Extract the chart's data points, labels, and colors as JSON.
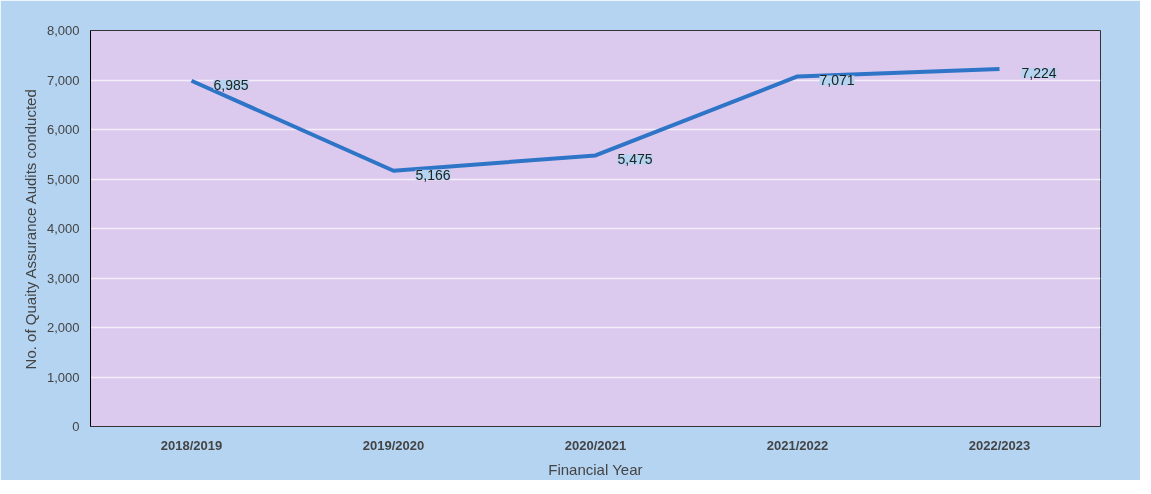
{
  "chart_data": {
    "type": "line",
    "categories": [
      "2018/2019",
      "2019/2020",
      "2020/2021",
      "2021/2022",
      "2022/2023"
    ],
    "series": [
      {
        "color": "#2e75c8",
        "values": [
          6985,
          5166,
          5475,
          7071,
          7224
        ],
        "value_labels": [
          "6,985",
          "5,166",
          "5,475",
          "7,071",
          "7,224"
        ]
      }
    ],
    "xlabel": "Financial Year",
    "ylabel": "No. of Quaity Assurance Audits conducted",
    "ylim": [
      0,
      8000
    ],
    "yticks": [
      {
        "value": 0,
        "label": "0"
      },
      {
        "value": 1000,
        "label": "1,000"
      },
      {
        "value": 2000,
        "label": "2,000"
      },
      {
        "value": 3000,
        "label": "3,000"
      },
      {
        "value": 4000,
        "label": "4,000"
      },
      {
        "value": 5000,
        "label": "5,000"
      },
      {
        "value": 6000,
        "label": "6,000"
      },
      {
        "value": 7000,
        "label": "7,000"
      },
      {
        "value": 8000,
        "label": "8,000"
      }
    ],
    "grid": "y",
    "marker": "none",
    "line_style": "solid"
  }
}
